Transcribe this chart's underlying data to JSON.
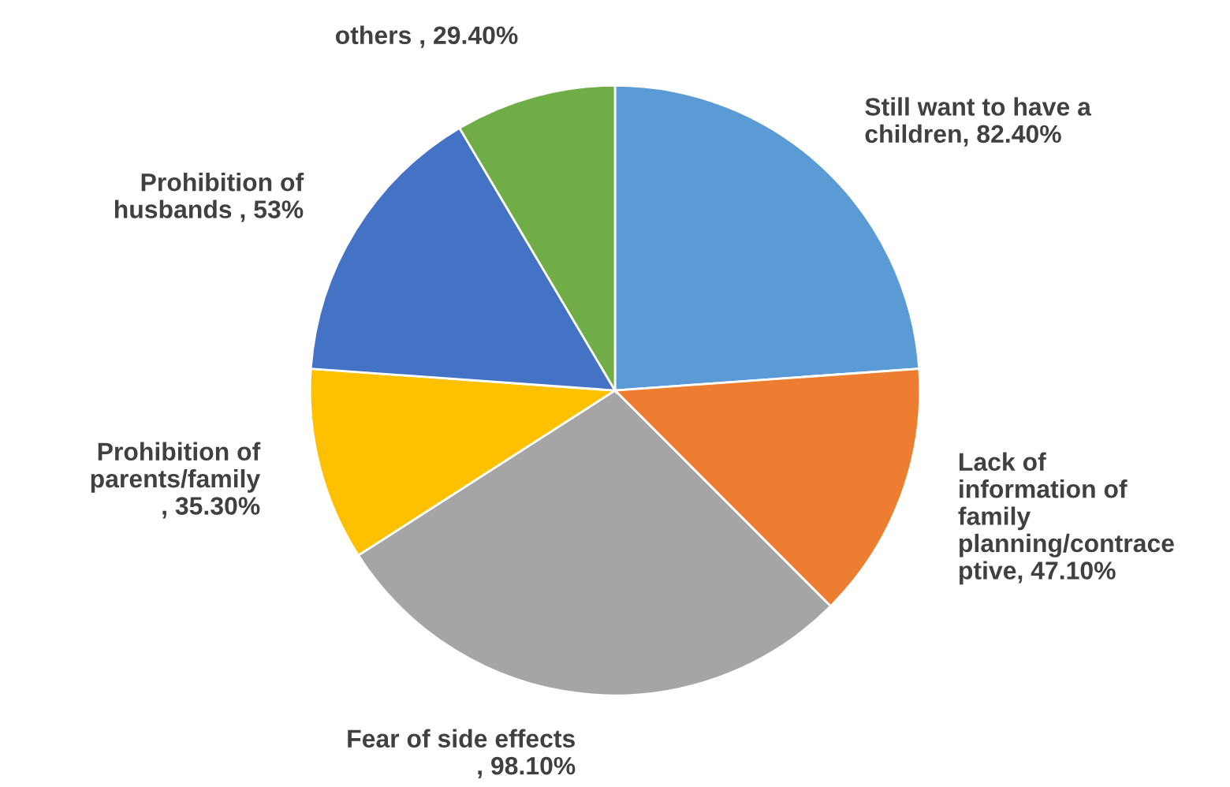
{
  "chart_data": {
    "type": "pie",
    "categories": [
      "Still want to have a\nchildren",
      "Lack of\ninformation of\nfamily\nplanning/contrace\nptive",
      "Fear of side effects\n",
      "Prohibition of\nparents/family\n",
      "Prohibition of\nhusbands ",
      "others "
    ],
    "values": [
      82.4,
      47.1,
      98.1,
      35.3,
      53,
      29.4
    ],
    "value_labels": [
      ", 82.40%",
      ", 47.10%",
      ", 98.10%",
      ", 35.30%",
      ", 53%",
      ", 29.40%"
    ],
    "colors": [
      "#5b9bd5",
      "#ed7d31",
      "#a5a5a5",
      "#ffc000",
      "#4472c4",
      "#70ad47"
    ],
    "legend": false
  }
}
